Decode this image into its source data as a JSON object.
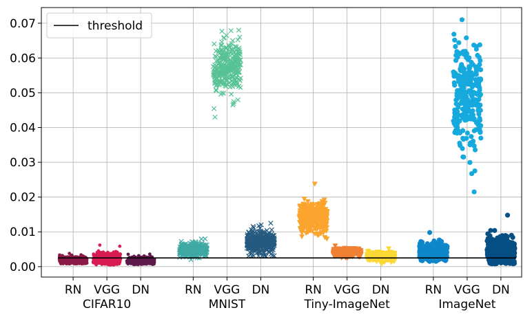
{
  "chart_data": {
    "type": "scatter",
    "title": "",
    "xlabel": "",
    "ylabel": "",
    "ylim": [
      -0.003,
      0.0745
    ],
    "grid": true,
    "legend": {
      "position": "top-left",
      "entries": [
        "threshold"
      ]
    },
    "y_ticks": [
      0.0,
      0.01,
      0.02,
      0.03,
      0.04,
      0.05,
      0.06,
      0.07
    ],
    "y_tick_labels": [
      "0.00",
      "0.01",
      "0.02",
      "0.03",
      "0.04",
      "0.05",
      "0.06",
      "0.07"
    ],
    "threshold": {
      "label": "threshold",
      "value": 0.0025,
      "color": "#000000"
    },
    "groups": [
      {
        "dataset": "CIFAR10",
        "models": [
          "RN",
          "VGG",
          "DN"
        ]
      },
      {
        "dataset": "MNIST",
        "models": [
          "RN",
          "VGG",
          "DN"
        ]
      },
      {
        "dataset": "Tiny-ImageNet",
        "models": [
          "RN",
          "VGG",
          "DN"
        ]
      },
      {
        "dataset": "ImageNet",
        "models": [
          "RN",
          "VGG",
          "DN"
        ]
      }
    ],
    "series": [
      {
        "name": "CIFAR10 RN",
        "marker": "circle-small",
        "color": "#8b1a46",
        "center": 0.0018,
        "spread": 0.0005,
        "min": 0.0008,
        "max": 0.0038,
        "n": 420
      },
      {
        "name": "CIFAR10 VGG",
        "marker": "circle-small",
        "color": "#d81b53",
        "center": 0.0022,
        "spread": 0.0009,
        "min": 0.0005,
        "max": 0.0062,
        "n": 420
      },
      {
        "name": "CIFAR10 DN",
        "marker": "circle-small",
        "color": "#5e1a4a",
        "center": 0.0018,
        "spread": 0.0005,
        "min": 0.0006,
        "max": 0.0036,
        "n": 420
      },
      {
        "name": "MNIST RN",
        "marker": "x",
        "color": "#3fa9a4",
        "center": 0.0048,
        "spread": 0.0009,
        "min": 0.002,
        "max": 0.008,
        "n": 420
      },
      {
        "name": "MNIST VGG",
        "marker": "x",
        "color": "#57c295",
        "center": 0.057,
        "spread": 0.0038,
        "min": 0.043,
        "max": 0.068,
        "n": 300
      },
      {
        "name": "MNIST DN",
        "marker": "x",
        "color": "#255a80",
        "center": 0.0068,
        "spread": 0.0016,
        "min": 0.003,
        "max": 0.0125,
        "n": 420
      },
      {
        "name": "Tiny-ImageNet RN",
        "marker": "triangle-down",
        "color": "#fba42e",
        "center": 0.014,
        "spread": 0.002,
        "min": 0.008,
        "max": 0.0238,
        "n": 420
      },
      {
        "name": "Tiny-ImageNet VGG",
        "marker": "triangle-down",
        "color": "#f08033",
        "center": 0.004,
        "spread": 0.0005,
        "min": 0.0025,
        "max": 0.006,
        "n": 420
      },
      {
        "name": "Tiny-ImageNet DN",
        "marker": "triangle-down",
        "color": "#fdd835",
        "center": 0.0028,
        "spread": 0.0006,
        "min": 0.0008,
        "max": 0.0052,
        "n": 420
      },
      {
        "name": "ImageNet RN",
        "marker": "circle",
        "color": "#0f86c9",
        "center": 0.0042,
        "spread": 0.0012,
        "min": 0.0015,
        "max": 0.0098,
        "n": 420
      },
      {
        "name": "ImageNet VGG",
        "marker": "circle",
        "color": "#16a9dd",
        "center": 0.049,
        "spread": 0.008,
        "min": 0.0215,
        "max": 0.071,
        "n": 260
      },
      {
        "name": "ImageNet DN",
        "marker": "circle",
        "color": "#064f85",
        "center": 0.0045,
        "spread": 0.002,
        "min": 0.0008,
        "max": 0.0148,
        "n": 420
      }
    ]
  }
}
